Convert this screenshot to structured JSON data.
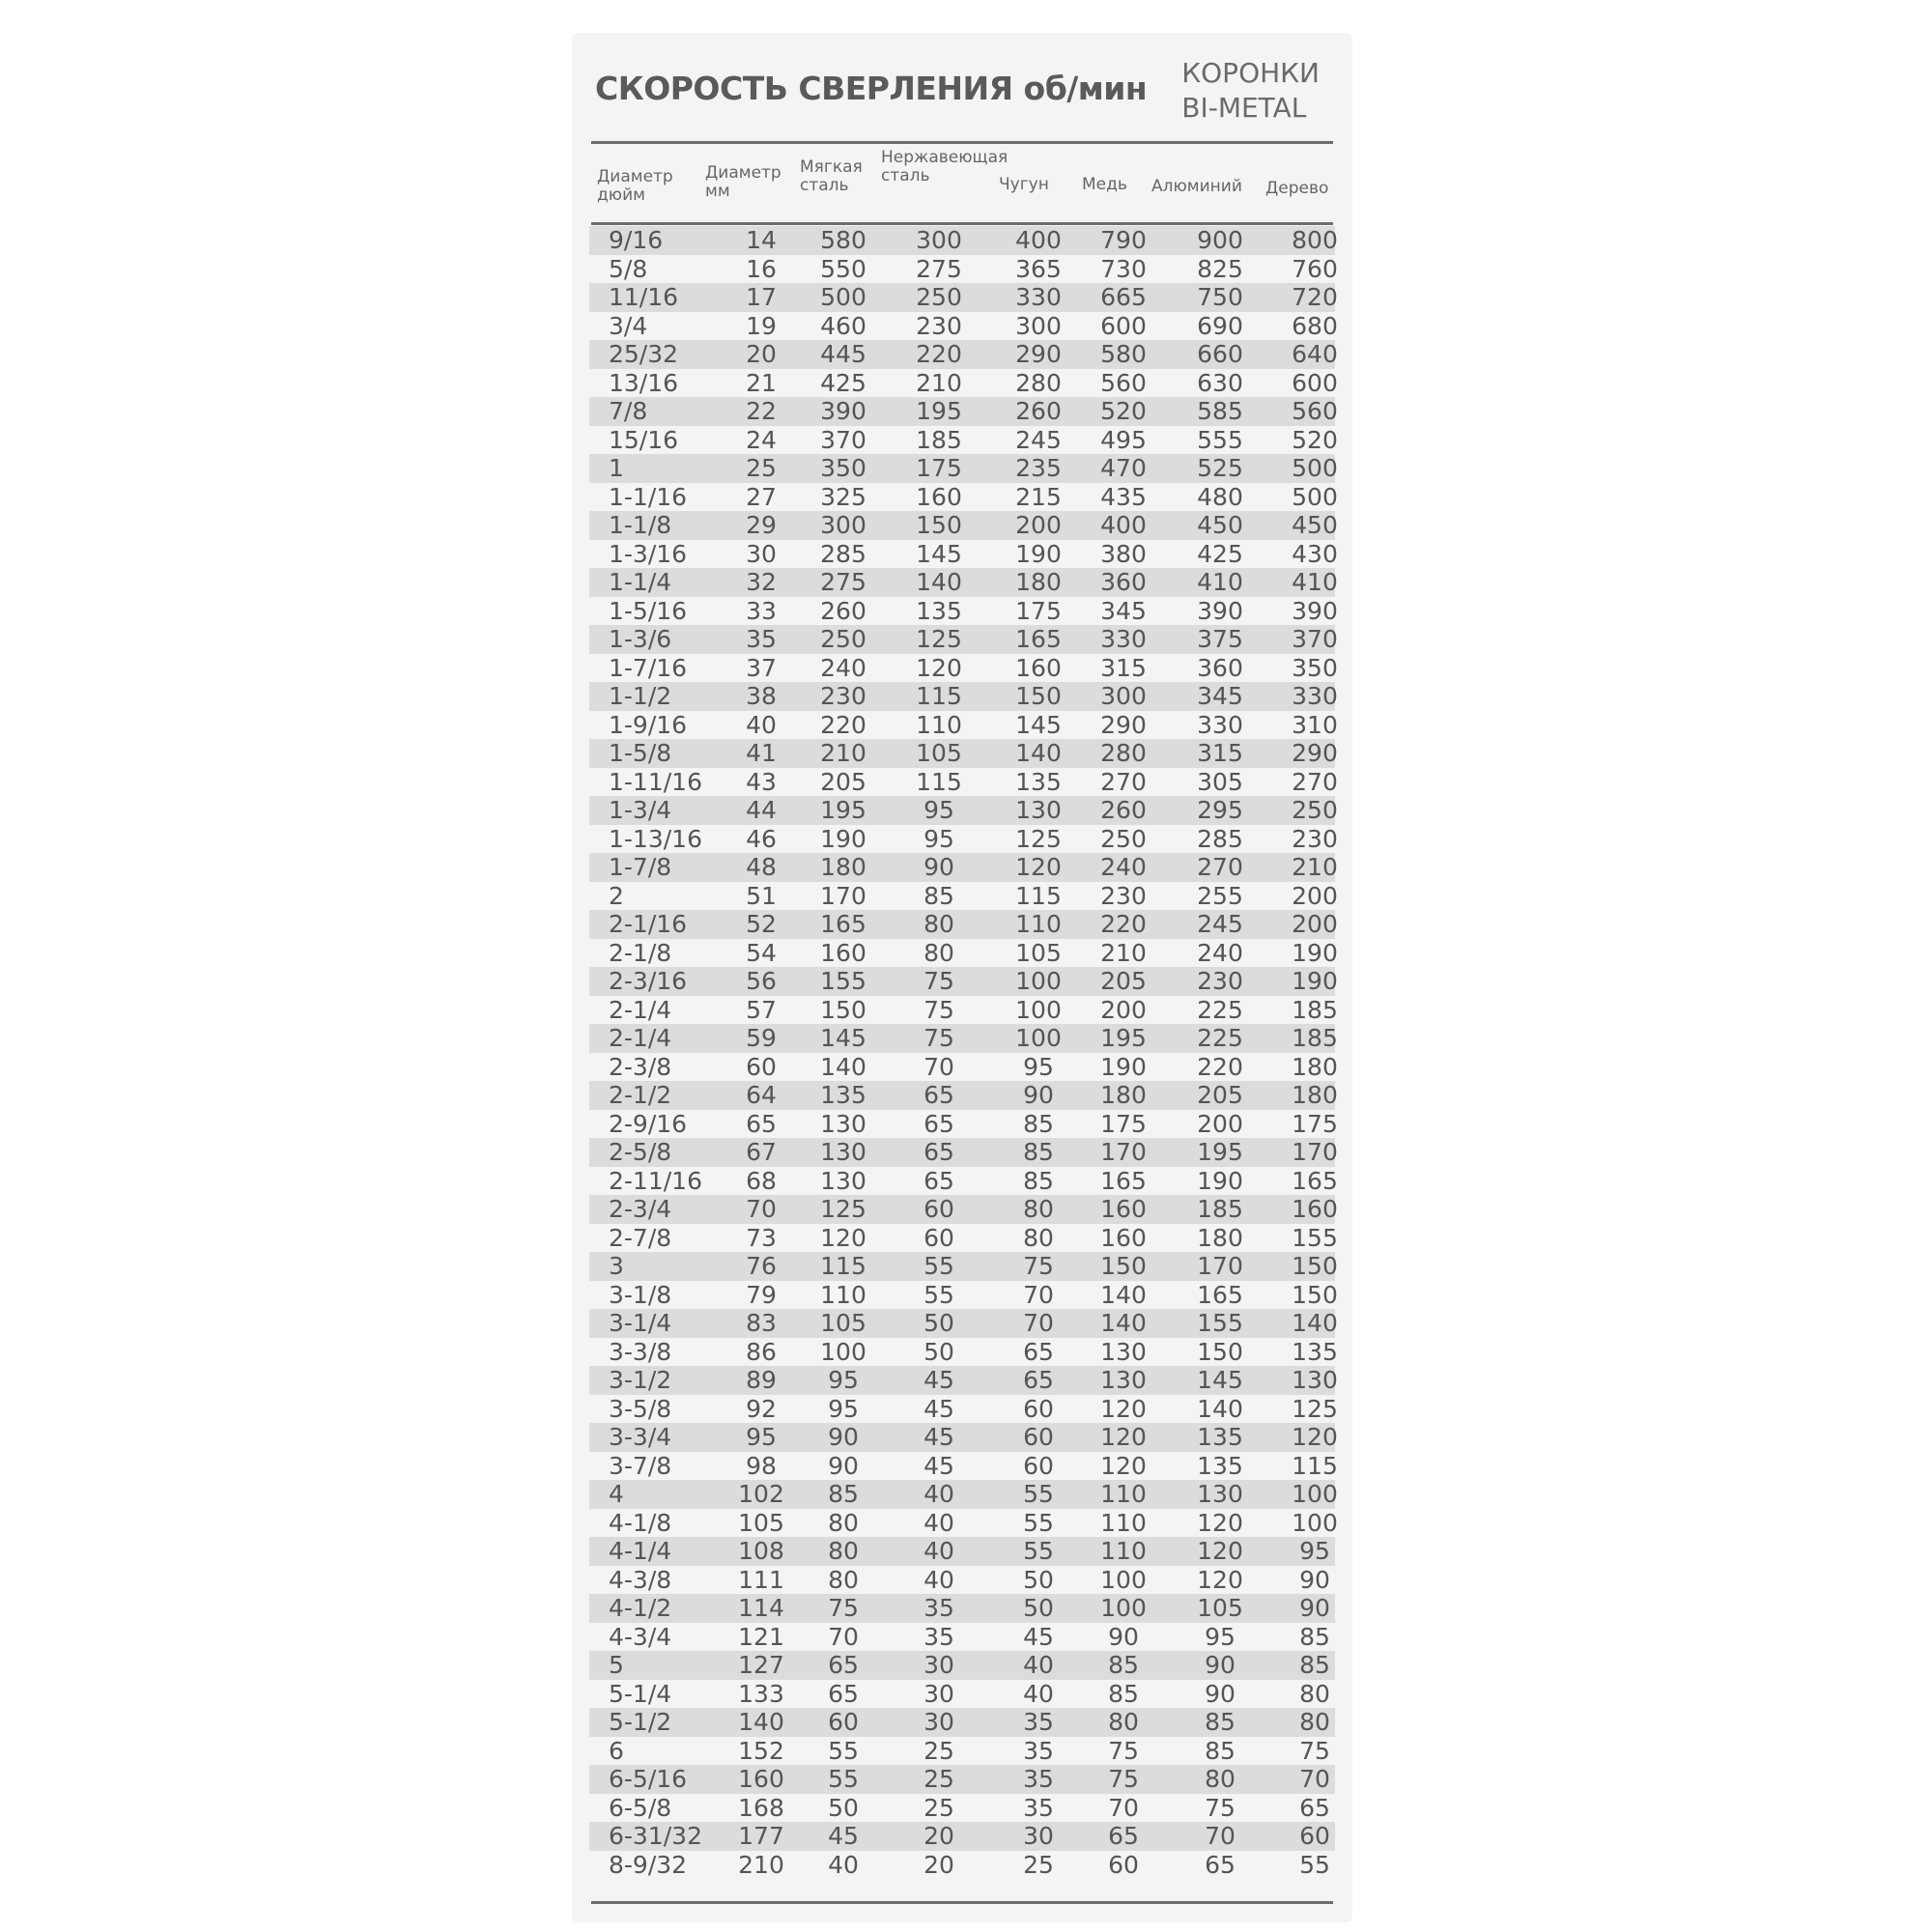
{
  "title": "СКОРОСТЬ СВЕРЛЕНИЯ об/мин",
  "brand": {
    "line1": "КОРОНКИ",
    "line2": "BI-METAL"
  },
  "columns": [
    {
      "line1": "Диаметр",
      "line2": "дюйм"
    },
    {
      "line1": "Диаметр",
      "line2": "мм"
    },
    {
      "line1": "Мягкая",
      "line2": "сталь"
    },
    {
      "line1": "Нержавеющая",
      "line2": "сталь"
    },
    {
      "line1": "",
      "line2": "Чугун"
    },
    {
      "line1": "",
      "line2": "Медь"
    },
    {
      "line1": "",
      "line2": "Алюминий"
    },
    {
      "line1": "",
      "line2": "Дерево"
    }
  ],
  "rows": [
    [
      "9/16",
      "14",
      "580",
      "300",
      "400",
      "790",
      "900",
      "800"
    ],
    [
      "5/8",
      "16",
      "550",
      "275",
      "365",
      "730",
      "825",
      "760"
    ],
    [
      "11/16",
      "17",
      "500",
      "250",
      "330",
      "665",
      "750",
      "720"
    ],
    [
      "3/4",
      "19",
      "460",
      "230",
      "300",
      "600",
      "690",
      "680"
    ],
    [
      "25/32",
      "20",
      "445",
      "220",
      "290",
      "580",
      "660",
      "640"
    ],
    [
      "13/16",
      "21",
      "425",
      "210",
      "280",
      "560",
      "630",
      "600"
    ],
    [
      "7/8",
      "22",
      "390",
      "195",
      "260",
      "520",
      "585",
      "560"
    ],
    [
      "15/16",
      "24",
      "370",
      "185",
      "245",
      "495",
      "555",
      "520"
    ],
    [
      "1",
      "25",
      "350",
      "175",
      "235",
      "470",
      "525",
      "500"
    ],
    [
      "1-1/16",
      "27",
      "325",
      "160",
      "215",
      "435",
      "480",
      "500"
    ],
    [
      "1-1/8",
      "29",
      "300",
      "150",
      "200",
      "400",
      "450",
      "450"
    ],
    [
      "1-3/16",
      "30",
      "285",
      "145",
      "190",
      "380",
      "425",
      "430"
    ],
    [
      "1-1/4",
      "32",
      "275",
      "140",
      "180",
      "360",
      "410",
      "410"
    ],
    [
      "1-5/16",
      "33",
      "260",
      "135",
      "175",
      "345",
      "390",
      "390"
    ],
    [
      "1-3/6",
      "35",
      "250",
      "125",
      "165",
      "330",
      "375",
      "370"
    ],
    [
      "1-7/16",
      "37",
      "240",
      "120",
      "160",
      "315",
      "360",
      "350"
    ],
    [
      "1-1/2",
      "38",
      "230",
      "115",
      "150",
      "300",
      "345",
      "330"
    ],
    [
      "1-9/16",
      "40",
      "220",
      "110",
      "145",
      "290",
      "330",
      "310"
    ],
    [
      "1-5/8",
      "41",
      "210",
      "105",
      "140",
      "280",
      "315",
      "290"
    ],
    [
      "1-11/16",
      "43",
      "205",
      "115",
      "135",
      "270",
      "305",
      "270"
    ],
    [
      "1-3/4",
      "44",
      "195",
      "95",
      "130",
      "260",
      "295",
      "250"
    ],
    [
      "1-13/16",
      "46",
      "190",
      "95",
      "125",
      "250",
      "285",
      "230"
    ],
    [
      "1-7/8",
      "48",
      "180",
      "90",
      "120",
      "240",
      "270",
      "210"
    ],
    [
      "2",
      "51",
      "170",
      "85",
      "115",
      "230",
      "255",
      "200"
    ],
    [
      "2-1/16",
      "52",
      "165",
      "80",
      "110",
      "220",
      "245",
      "200"
    ],
    [
      "2-1/8",
      "54",
      "160",
      "80",
      "105",
      "210",
      "240",
      "190"
    ],
    [
      "2-3/16",
      "56",
      "155",
      "75",
      "100",
      "205",
      "230",
      "190"
    ],
    [
      "2-1/4",
      "57",
      "150",
      "75",
      "100",
      "200",
      "225",
      "185"
    ],
    [
      "2-1/4",
      "59",
      "145",
      "75",
      "100",
      "195",
      "225",
      "185"
    ],
    [
      "2-3/8",
      "60",
      "140",
      "70",
      "95",
      "190",
      "220",
      "180"
    ],
    [
      "2-1/2",
      "64",
      "135",
      "65",
      "90",
      "180",
      "205",
      "180"
    ],
    [
      "2-9/16",
      "65",
      "130",
      "65",
      "85",
      "175",
      "200",
      "175"
    ],
    [
      "2-5/8",
      "67",
      "130",
      "65",
      "85",
      "170",
      "195",
      "170"
    ],
    [
      "2-11/16",
      "68",
      "130",
      "65",
      "85",
      "165",
      "190",
      "165"
    ],
    [
      "2-3/4",
      "70",
      "125",
      "60",
      "80",
      "160",
      "185",
      "160"
    ],
    [
      "2-7/8",
      "73",
      "120",
      "60",
      "80",
      "160",
      "180",
      "155"
    ],
    [
      "3",
      "76",
      "115",
      "55",
      "75",
      "150",
      "170",
      "150"
    ],
    [
      "3-1/8",
      "79",
      "110",
      "55",
      "70",
      "140",
      "165",
      "150"
    ],
    [
      "3-1/4",
      "83",
      "105",
      "50",
      "70",
      "140",
      "155",
      "140"
    ],
    [
      "3-3/8",
      "86",
      "100",
      "50",
      "65",
      "130",
      "150",
      "135"
    ],
    [
      "3-1/2",
      "89",
      "95",
      "45",
      "65",
      "130",
      "145",
      "130"
    ],
    [
      "3-5/8",
      "92",
      "95",
      "45",
      "60",
      "120",
      "140",
      "125"
    ],
    [
      "3-3/4",
      "95",
      "90",
      "45",
      "60",
      "120",
      "135",
      "120"
    ],
    [
      "3-7/8",
      "98",
      "90",
      "45",
      "60",
      "120",
      "135",
      "115"
    ],
    [
      "4",
      "102",
      "85",
      "40",
      "55",
      "110",
      "130",
      "100"
    ],
    [
      "4-1/8",
      "105",
      "80",
      "40",
      "55",
      "110",
      "120",
      "100"
    ],
    [
      "4-1/4",
      "108",
      "80",
      "40",
      "55",
      "110",
      "120",
      "95"
    ],
    [
      "4-3/8",
      "111",
      "80",
      "40",
      "50",
      "100",
      "120",
      "90"
    ],
    [
      "4-1/2",
      "114",
      "75",
      "35",
      "50",
      "100",
      "105",
      "90"
    ],
    [
      "4-3/4",
      "121",
      "70",
      "35",
      "45",
      "90",
      "95",
      "85"
    ],
    [
      "5",
      "127",
      "65",
      "30",
      "40",
      "85",
      "90",
      "85"
    ],
    [
      "5-1/4",
      "133",
      "65",
      "30",
      "40",
      "85",
      "90",
      "80"
    ],
    [
      "5-1/2",
      "140",
      "60",
      "30",
      "35",
      "80",
      "85",
      "80"
    ],
    [
      "6",
      "152",
      "55",
      "25",
      "35",
      "75",
      "85",
      "75"
    ],
    [
      "6-5/16",
      "160",
      "55",
      "25",
      "35",
      "75",
      "80",
      "70"
    ],
    [
      "6-5/8",
      "168",
      "50",
      "25",
      "35",
      "70",
      "75",
      "65"
    ],
    [
      "6-31/32",
      "177",
      "45",
      "20",
      "30",
      "65",
      "70",
      "60"
    ],
    [
      "8-9/32",
      "210",
      "40",
      "20",
      "25",
      "60",
      "65",
      "55"
    ]
  ]
}
